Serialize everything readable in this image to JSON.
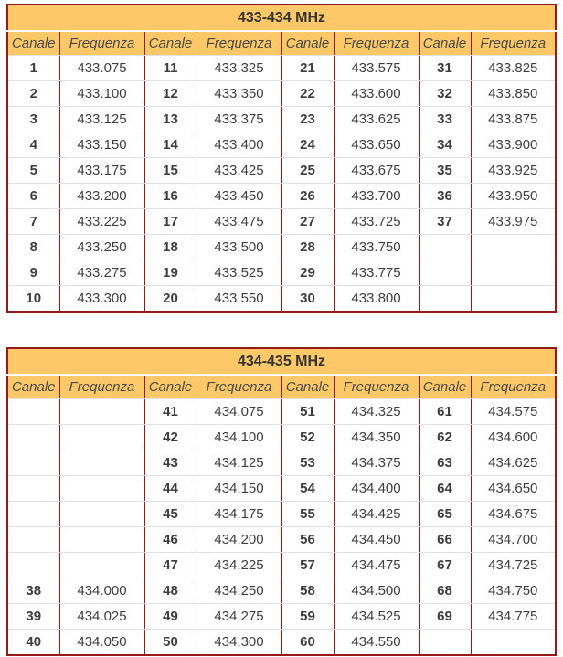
{
  "colors": {
    "header_bg": "#fdc868",
    "border_red": "#971a1a",
    "border_gray": "#e0e0e0",
    "text": "#3e3e3e"
  },
  "tables": [
    {
      "title": "433-434 MHz",
      "column_headers": [
        "Canale",
        "Frequenza",
        "Canale",
        "Frequenza",
        "Canale",
        "Frequenza",
        "Canale",
        "Frequenza"
      ],
      "rows": [
        [
          "1",
          "433.075",
          "11",
          "433.325",
          "21",
          "433.575",
          "31",
          "433.825"
        ],
        [
          "2",
          "433.100",
          "12",
          "433.350",
          "22",
          "433.600",
          "32",
          "433.850"
        ],
        [
          "3",
          "433.125",
          "13",
          "433.375",
          "23",
          "433.625",
          "33",
          "433.875"
        ],
        [
          "4",
          "433.150",
          "14",
          "433.400",
          "24",
          "433.650",
          "34",
          "433.900"
        ],
        [
          "5",
          "433.175",
          "15",
          "433.425",
          "25",
          "433.675",
          "35",
          "433.925"
        ],
        [
          "6",
          "433.200",
          "16",
          "433.450",
          "26",
          "433.700",
          "36",
          "433.950"
        ],
        [
          "7",
          "433.225",
          "17",
          "433.475",
          "27",
          "433.725",
          "37",
          "433.975"
        ],
        [
          "8",
          "433.250",
          "18",
          "433.500",
          "28",
          "433.750",
          "",
          ""
        ],
        [
          "9",
          "433.275",
          "19",
          "433.525",
          "29",
          "433.775",
          "",
          ""
        ],
        [
          "10",
          "433.300",
          "20",
          "433.550",
          "30",
          "433.800",
          "",
          ""
        ]
      ]
    },
    {
      "title": "434-435 MHz",
      "column_headers": [
        "Canale",
        "Frequenza",
        "Canale",
        "Frequenza",
        "Canale",
        "Frequenza",
        "Canale",
        "Frequenza"
      ],
      "rows": [
        [
          "",
          "",
          "41",
          "434.075",
          "51",
          "434.325",
          "61",
          "434.575"
        ],
        [
          "",
          "",
          "42",
          "434.100",
          "52",
          "434.350",
          "62",
          "434.600"
        ],
        [
          "",
          "",
          "43",
          "434.125",
          "53",
          "434.375",
          "63",
          "434.625"
        ],
        [
          "",
          "",
          "44",
          "434.150",
          "54",
          "434.400",
          "64",
          "434.650"
        ],
        [
          "",
          "",
          "45",
          "434.175",
          "55",
          "434.425",
          "65",
          "434.675"
        ],
        [
          "",
          "",
          "46",
          "434.200",
          "56",
          "434.450",
          "66",
          "434.700"
        ],
        [
          "",
          "",
          "47",
          "434.225",
          "57",
          "434.475",
          "67",
          "434.725"
        ],
        [
          "38",
          "434.000",
          "48",
          "434.250",
          "58",
          "434.500",
          "68",
          "434.750"
        ],
        [
          "39",
          "434.025",
          "49",
          "434.275",
          "59",
          "434.525",
          "69",
          "434.775"
        ],
        [
          "40",
          "434.050",
          "50",
          "434.300",
          "60",
          "434.550",
          "",
          ""
        ]
      ]
    }
  ]
}
